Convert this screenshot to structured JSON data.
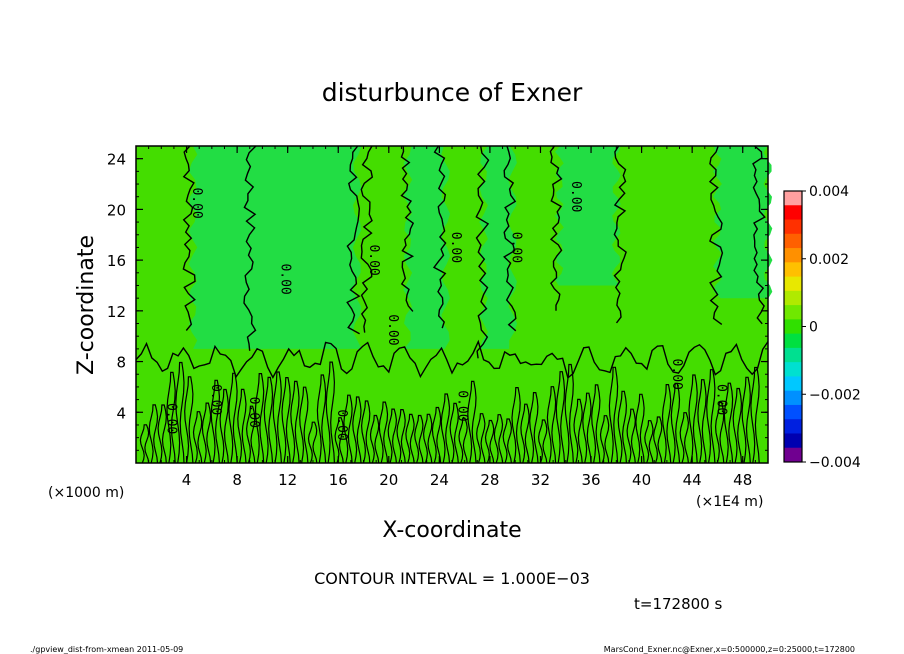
{
  "chart_data": {
    "type": "heatmap",
    "title": "disturbunce of Exner",
    "xlabel": "X-coordinate",
    "ylabel": "Z-coordinate",
    "x_unit": "(×1E4 m)",
    "y_unit": "(×1000 m)",
    "xlim": [
      0,
      50
    ],
    "ylim": [
      0,
      25
    ],
    "x_ticks": [
      "4",
      "8",
      "12",
      "16",
      "20",
      "24",
      "28",
      "32",
      "36",
      "40",
      "44",
      "48"
    ],
    "x_tick_values": [
      4,
      8,
      12,
      16,
      20,
      24,
      28,
      32,
      36,
      40,
      44,
      48
    ],
    "y_ticks": [
      "4",
      "8",
      "12",
      "16",
      "20",
      "24"
    ],
    "y_tick_values": [
      4,
      8,
      12,
      16,
      20,
      24
    ],
    "contour_labels": [
      {
        "x": 4.5,
        "z": 20.5,
        "text": "0.00"
      },
      {
        "x": 11.5,
        "z": 14.5,
        "text": "0.00"
      },
      {
        "x": 18.5,
        "z": 16.0,
        "text": "0.00"
      },
      {
        "x": 20.0,
        "z": 10.5,
        "text": "0.00"
      },
      {
        "x": 25.0,
        "z": 17.0,
        "text": "0.00"
      },
      {
        "x": 29.8,
        "z": 17.0,
        "text": "0.00"
      },
      {
        "x": 34.5,
        "z": 21.0,
        "text": "0.00"
      },
      {
        "x": 2.5,
        "z": 3.5,
        "text": "0.00"
      },
      {
        "x": 6.0,
        "z": 5.0,
        "text": "0.00"
      },
      {
        "x": 9.0,
        "z": 4.0,
        "text": "0.00"
      },
      {
        "x": 16.0,
        "z": 3.0,
        "text": "0.00"
      },
      {
        "x": 25.5,
        "z": 4.5,
        "text": "0.00"
      },
      {
        "x": 42.5,
        "z": 7.0,
        "text": "0.00"
      },
      {
        "x": 46.0,
        "z": 5.0,
        "text": "0.00"
      }
    ],
    "colorbar": {
      "ticks": [
        "0.004",
        "0.002",
        "0",
        "−0.002",
        "−0.004"
      ],
      "tick_values": [
        0.004,
        0.002,
        0,
        -0.002,
        -0.004
      ],
      "colors": [
        "#ff0000",
        "#ff3000",
        "#ff6000",
        "#ff9000",
        "#ffc000",
        "#e8e800",
        "#b0ea00",
        "#70e800",
        "#30e000",
        "#00e040",
        "#00e090",
        "#00e0d0",
        "#00c8ff",
        "#0090ff",
        "#0050ff",
        "#0020e0",
        "#0000b0",
        "#700090"
      ],
      "top_color": "#ffa0a0"
    },
    "field_colors": {
      "background": "#44dd00",
      "minor": "#22dd44"
    },
    "contour_interval": "CONTOUR INTERVAL = 1.000E−03",
    "time": "t=172800 s"
  },
  "footer": {
    "left": "./gpview_dist-from-xmean   2011-05-09",
    "right": "MarsCond_Exner.nc@Exner,x=0:500000,z=0:25000,t=172800"
  }
}
